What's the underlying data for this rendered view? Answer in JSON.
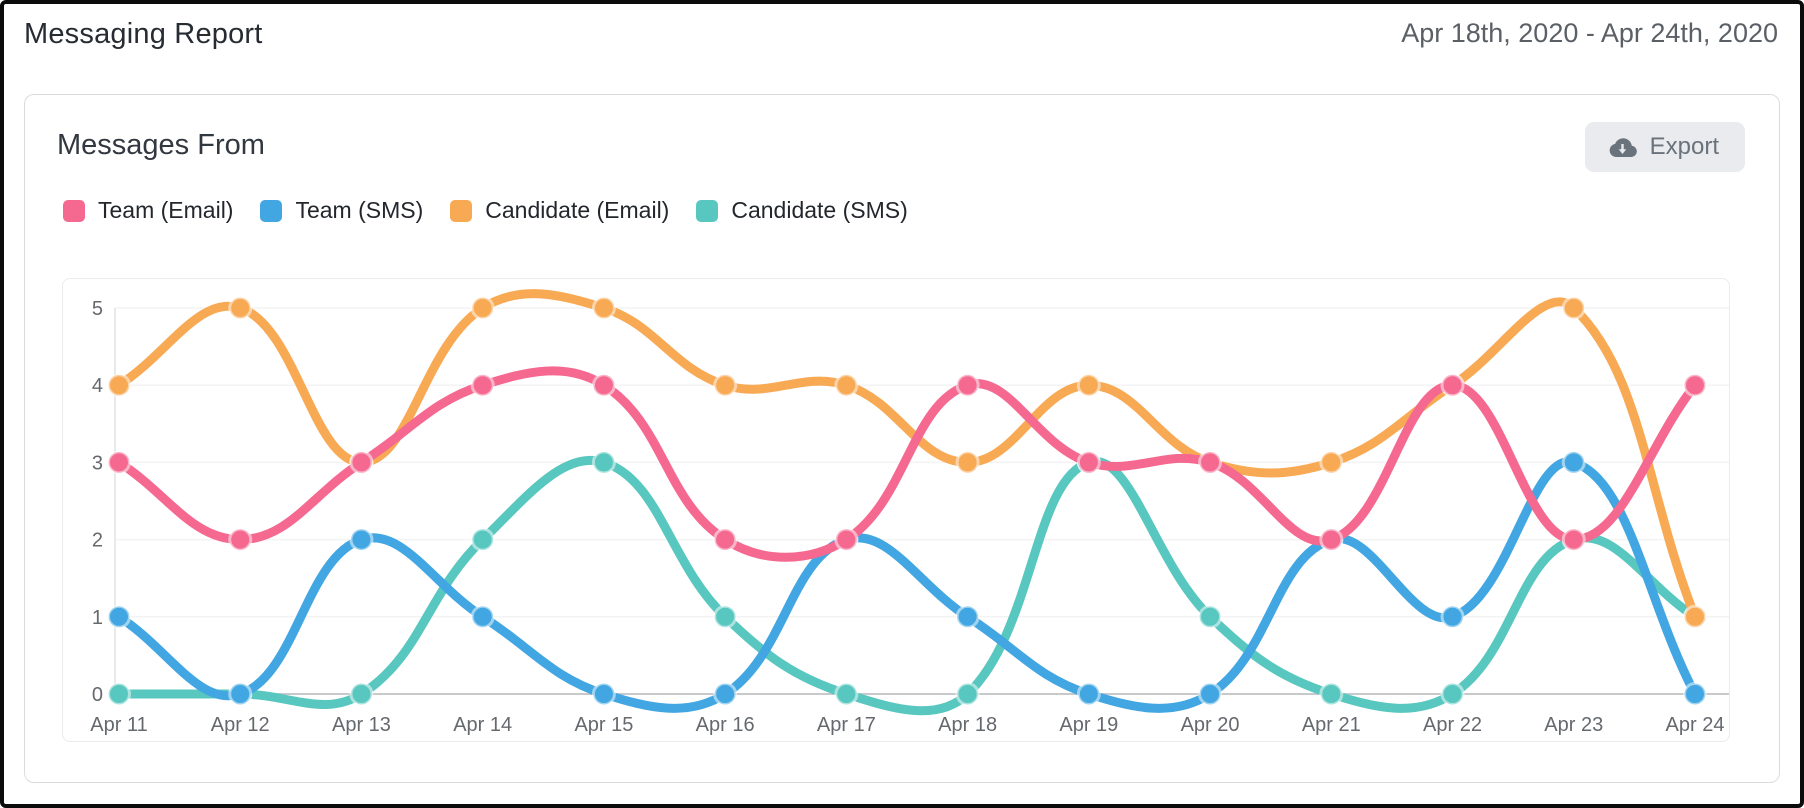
{
  "header": {
    "title": "Messaging Report",
    "date_range": "Apr 18th, 2020 - Apr 24th, 2020"
  },
  "card": {
    "title": "Messages From",
    "export_label": "Export",
    "export_icon": "cloud-download-icon"
  },
  "chart_data": {
    "type": "line",
    "title": "Messages From",
    "categories": [
      "Apr 11",
      "Apr 12",
      "Apr 13",
      "Apr 14",
      "Apr 15",
      "Apr 16",
      "Apr 17",
      "Apr 18",
      "Apr 19",
      "Apr 20",
      "Apr 21",
      "Apr 22",
      "Apr 23",
      "Apr 24"
    ],
    "series": [
      {
        "name": "Team (Email)",
        "color": "#f56991",
        "values": [
          3,
          2,
          3,
          4,
          4,
          2,
          2,
          4,
          3,
          3,
          2,
          4,
          2,
          4
        ]
      },
      {
        "name": "Team (SMS)",
        "color": "#41a6e1",
        "values": [
          1,
          0,
          2,
          1,
          0,
          0,
          2,
          1,
          0,
          0,
          2,
          1,
          3,
          0
        ]
      },
      {
        "name": "Candidate (Email)",
        "color": "#f8a954",
        "values": [
          4,
          5,
          3,
          5,
          5,
          4,
          4,
          3,
          4,
          3,
          3,
          4,
          5,
          1
        ]
      },
      {
        "name": "Candidate (SMS)",
        "color": "#58c7bf",
        "values": [
          0,
          0,
          0,
          2,
          3,
          1,
          0,
          0,
          3,
          1,
          0,
          0,
          2,
          1
        ]
      }
    ],
    "xlabel": "",
    "ylabel": "",
    "ylim": [
      0,
      5
    ],
    "yticks": [
      0,
      1,
      2,
      3,
      4,
      5
    ],
    "grid": true,
    "legend_position": "top",
    "grid_color": "#f3f3f3",
    "zero_line_color": "#c7c9cb",
    "axis_line_color": "#e9e9e9"
  }
}
